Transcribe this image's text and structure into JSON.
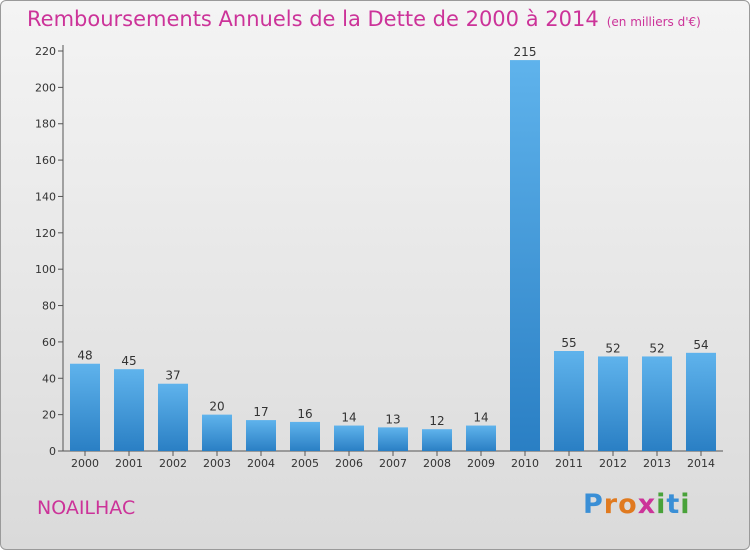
{
  "title": "Remboursements Annuels de la Dette de 2000 à 2014",
  "subtitle": "(en milliers d'€)",
  "commune": "NOAILHAC",
  "logo": {
    "letters": [
      "P",
      "r",
      "o",
      "x",
      "i",
      "t",
      "i"
    ],
    "colors": [
      "#3a8fd6",
      "#e07a1f",
      "#e07a1f",
      "#cc3399",
      "#49a23a",
      "#3a8fd6",
      "#49a23a"
    ]
  },
  "colors": {
    "title": "#cc3399",
    "bar_light": "#5fb3ec",
    "bar_dark": "#2a7fc4"
  },
  "chart_data": {
    "type": "bar",
    "categories": [
      "2000",
      "2001",
      "2002",
      "2003",
      "2004",
      "2005",
      "2006",
      "2007",
      "2008",
      "2009",
      "2010",
      "2011",
      "2012",
      "2013",
      "2014"
    ],
    "values": [
      48,
      45,
      37,
      20,
      17,
      16,
      14,
      13,
      12,
      14,
      215,
      55,
      52,
      52,
      54
    ],
    "yticks": [
      0,
      20,
      40,
      60,
      80,
      100,
      120,
      140,
      160,
      180,
      200,
      220
    ],
    "ylim": [
      0,
      220
    ],
    "grid": false,
    "legend": "none"
  }
}
